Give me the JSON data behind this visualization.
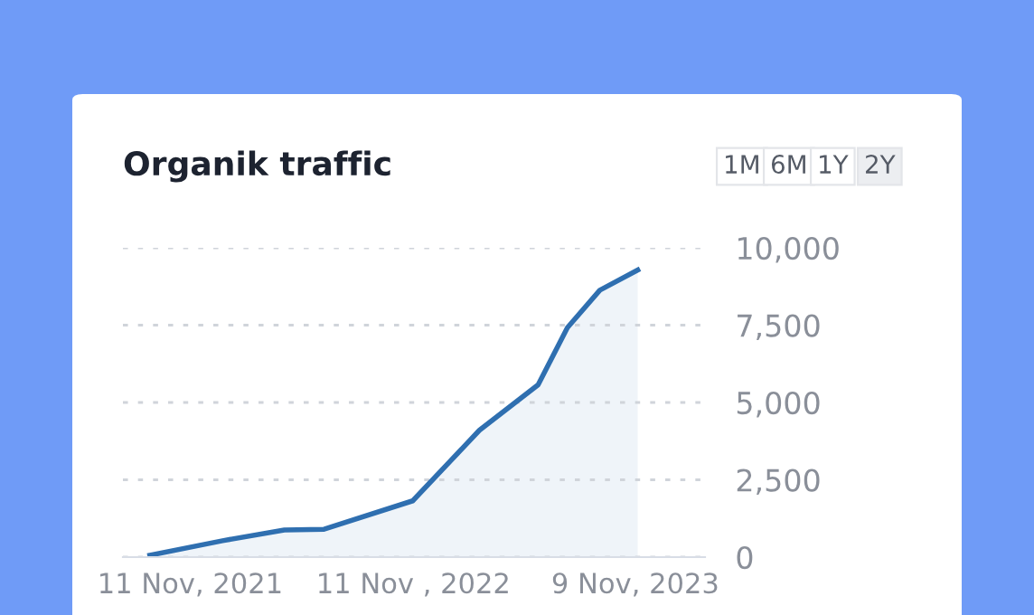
{
  "chart_data": {
    "type": "area",
    "title": "Organik traffic",
    "annotations": [
      "1M",
      "6M",
      "1Y",
      "2Y"
    ],
    "x": [
      "2021-09-06",
      "2022-01-03",
      "2022-04-14",
      "2022-06-18",
      "2022-11-10",
      "2023-02-27",
      "2023-06-03",
      "2023-07-21",
      "2023-09-12",
      "2023-11-13"
    ],
    "series": [
      {
        "color": "#2f6fb0",
        "values": [
          60,
          530,
          880,
          900,
          1820,
          4100,
          5570,
          7420,
          8630,
          9280
        ]
      }
    ],
    "xlim": [
      "2021-07-24",
      "2024-03-02"
    ],
    "xticks": [
      {
        "value": "2021-11-11",
        "label": "11 Nov, 2021"
      },
      {
        "value": "2022-11-11",
        "label": "11 Nov , 2022"
      },
      {
        "value": "2023-11-09",
        "label": "9 Nov, 2023"
      }
    ],
    "ylim": [
      0,
      10000
    ],
    "yticks": [
      {
        "value": 0,
        "label": "0"
      },
      {
        "value": 2500,
        "label": "2,500"
      },
      {
        "value": 5000,
        "label": "5,000"
      },
      {
        "value": 7500,
        "label": "7,500"
      },
      {
        "value": 10000,
        "label": "10,000"
      }
    ],
    "grid": "y",
    "legend": false
  }
}
